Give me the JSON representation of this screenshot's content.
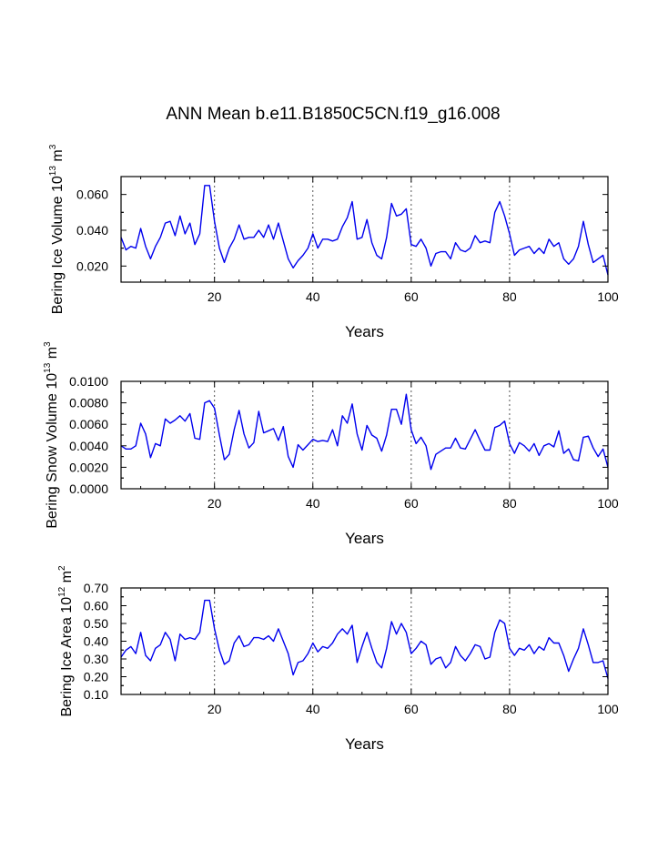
{
  "title": "ANN Mean b.e11.B1850C5CN.f19_g16.008",
  "chart_data": [
    {
      "type": "line",
      "ylabel": {
        "text": "Bering Ice Volume 10",
        "exponent": "13",
        "unit": " m",
        "unit_exp": "3"
      },
      "xlabel": "Years",
      "xlim": [
        1,
        100
      ],
      "ylim": [
        0.011,
        0.07
      ],
      "x_ticks": [
        "20",
        "40",
        "60",
        "80",
        "100"
      ],
      "x_tick_values": [
        20,
        40,
        60,
        80,
        100
      ],
      "y_ticks": [
        "0.020",
        "0.040",
        "0.060"
      ],
      "y_tick_values": [
        0.02,
        0.04,
        0.06
      ],
      "gridlines_x": [
        20,
        40,
        60,
        80
      ],
      "color": "#0000ee",
      "series": [
        {
          "name": "Ice Volume",
          "values": [
            0.036,
            0.029,
            0.031,
            0.03,
            0.041,
            0.031,
            0.024,
            0.031,
            0.036,
            0.044,
            0.045,
            0.037,
            0.048,
            0.038,
            0.044,
            0.032,
            0.038,
            0.065,
            0.065,
            0.045,
            0.03,
            0.022,
            0.03,
            0.035,
            0.043,
            0.035,
            0.036,
            0.036,
            0.04,
            0.036,
            0.043,
            0.035,
            0.044,
            0.034,
            0.024,
            0.019,
            0.023,
            0.026,
            0.03,
            0.038,
            0.03,
            0.035,
            0.035,
            0.034,
            0.035,
            0.042,
            0.047,
            0.056,
            0.035,
            0.036,
            0.046,
            0.033,
            0.026,
            0.024,
            0.036,
            0.055,
            0.048,
            0.049,
            0.052,
            0.032,
            0.031,
            0.035,
            0.03,
            0.02,
            0.027,
            0.028,
            0.028,
            0.024,
            0.033,
            0.029,
            0.028,
            0.03,
            0.037,
            0.033,
            0.034,
            0.033,
            0.05,
            0.056,
            0.048,
            0.038,
            0.026,
            0.029,
            0.03,
            0.031,
            0.027,
            0.03,
            0.027,
            0.035,
            0.031,
            0.033,
            0.024,
            0.021,
            0.024,
            0.031,
            0.045,
            0.032,
            0.022,
            0.024,
            0.026,
            0.015
          ]
        }
      ]
    },
    {
      "type": "line",
      "ylabel": {
        "text": "Bering Snow Volume 10",
        "exponent": "13",
        "unit": " m",
        "unit_exp": "3"
      },
      "xlabel": "Years",
      "xlim": [
        1,
        100
      ],
      "ylim": [
        0.0,
        0.01
      ],
      "x_ticks": [
        "20",
        "40",
        "60",
        "80",
        "100"
      ],
      "x_tick_values": [
        20,
        40,
        60,
        80,
        100
      ],
      "y_ticks": [
        "0.0000",
        "0.0020",
        "0.0040",
        "0.0060",
        "0.0080",
        "0.0100"
      ],
      "y_tick_values": [
        0.0,
        0.002,
        0.004,
        0.006,
        0.008,
        0.01
      ],
      "gridlines_x": [
        20,
        40,
        60,
        80
      ],
      "color": "#0000ee",
      "series": [
        {
          "name": "Snow Volume",
          "values": [
            0.004,
            0.0037,
            0.0037,
            0.004,
            0.0061,
            0.0051,
            0.0029,
            0.0042,
            0.004,
            0.0065,
            0.0061,
            0.0064,
            0.0068,
            0.0063,
            0.007,
            0.0047,
            0.0046,
            0.008,
            0.0082,
            0.0075,
            0.005,
            0.0027,
            0.0032,
            0.0055,
            0.0073,
            0.0051,
            0.0038,
            0.0043,
            0.0072,
            0.0052,
            0.0054,
            0.0056,
            0.0045,
            0.0058,
            0.003,
            0.002,
            0.0041,
            0.0036,
            0.0041,
            0.0046,
            0.0044,
            0.0045,
            0.0044,
            0.0055,
            0.004,
            0.0068,
            0.0061,
            0.0079,
            0.0051,
            0.0036,
            0.0059,
            0.005,
            0.0047,
            0.0035,
            0.005,
            0.0074,
            0.0074,
            0.006,
            0.0088,
            0.0055,
            0.0042,
            0.0048,
            0.004,
            0.0018,
            0.0032,
            0.0035,
            0.0038,
            0.0038,
            0.0047,
            0.0038,
            0.0037,
            0.0046,
            0.0055,
            0.0045,
            0.0036,
            0.0036,
            0.0057,
            0.0059,
            0.0063,
            0.0042,
            0.0033,
            0.0043,
            0.004,
            0.0035,
            0.0042,
            0.0031,
            0.004,
            0.0042,
            0.0039,
            0.0054,
            0.0033,
            0.0037,
            0.0027,
            0.0026,
            0.0048,
            0.0049,
            0.0038,
            0.003,
            0.0037,
            0.002
          ]
        }
      ]
    },
    {
      "type": "line",
      "ylabel": {
        "text": "Bering Ice Area 10",
        "exponent": "12",
        "unit": " m",
        "unit_exp": "2"
      },
      "xlabel": "Years",
      "xlim": [
        1,
        100
      ],
      "ylim": [
        0.1,
        0.7
      ],
      "x_ticks": [
        "20",
        "40",
        "60",
        "80",
        "100"
      ],
      "x_tick_values": [
        20,
        40,
        60,
        80,
        100
      ],
      "y_ticks": [
        "0.10",
        "0.20",
        "0.30",
        "0.40",
        "0.50",
        "0.60",
        "0.70"
      ],
      "y_tick_values": [
        0.1,
        0.2,
        0.3,
        0.4,
        0.5,
        0.6,
        0.7
      ],
      "gridlines_x": [
        20,
        40,
        60,
        80
      ],
      "color": "#0000ee",
      "series": [
        {
          "name": "Ice Area",
          "values": [
            0.31,
            0.35,
            0.37,
            0.33,
            0.45,
            0.32,
            0.29,
            0.36,
            0.38,
            0.45,
            0.41,
            0.29,
            0.44,
            0.41,
            0.42,
            0.41,
            0.45,
            0.63,
            0.63,
            0.47,
            0.35,
            0.27,
            0.29,
            0.39,
            0.43,
            0.37,
            0.38,
            0.42,
            0.42,
            0.41,
            0.43,
            0.4,
            0.47,
            0.4,
            0.33,
            0.21,
            0.28,
            0.29,
            0.33,
            0.39,
            0.34,
            0.37,
            0.36,
            0.39,
            0.44,
            0.47,
            0.44,
            0.49,
            0.28,
            0.37,
            0.45,
            0.36,
            0.28,
            0.25,
            0.36,
            0.51,
            0.44,
            0.5,
            0.45,
            0.33,
            0.36,
            0.4,
            0.38,
            0.27,
            0.3,
            0.31,
            0.25,
            0.28,
            0.37,
            0.32,
            0.29,
            0.33,
            0.38,
            0.37,
            0.3,
            0.31,
            0.45,
            0.52,
            0.5,
            0.36,
            0.32,
            0.36,
            0.35,
            0.38,
            0.33,
            0.37,
            0.35,
            0.42,
            0.39,
            0.39,
            0.32,
            0.23,
            0.3,
            0.36,
            0.47,
            0.38,
            0.28,
            0.28,
            0.29,
            0.19
          ]
        }
      ]
    }
  ]
}
